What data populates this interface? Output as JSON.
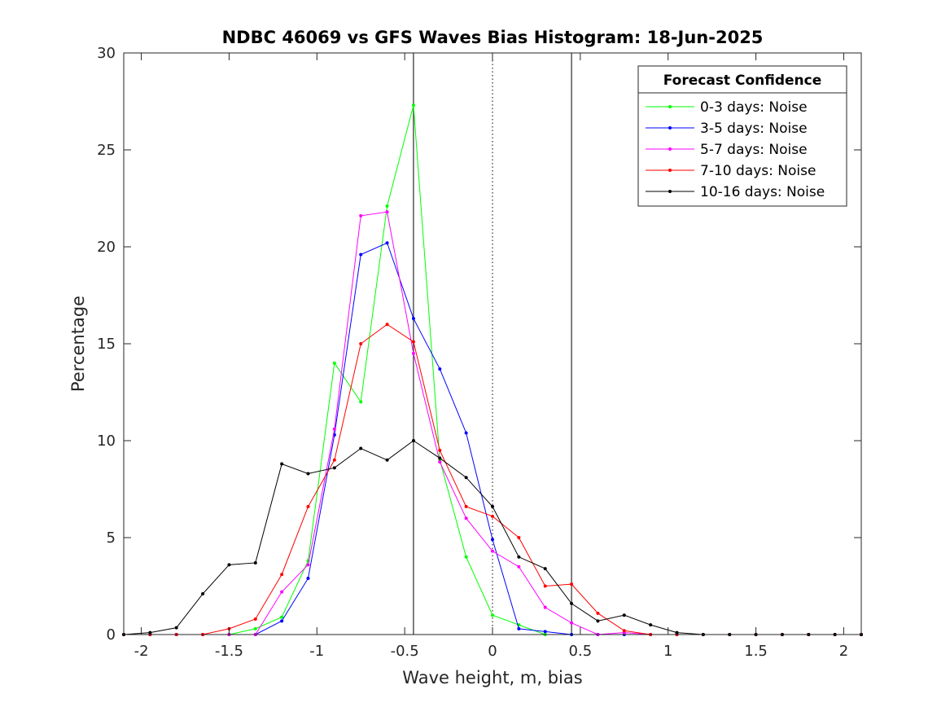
{
  "chart_data": {
    "type": "line",
    "title": "NDBC 46069 vs GFS Waves Bias Histogram: 18-Jun-2025",
    "xlabel": "Wave height, m, bias",
    "ylabel": "Percentage",
    "xlim": [
      -2.1,
      2.1
    ],
    "ylim": [
      0,
      30
    ],
    "xticks": [
      -2,
      -1.5,
      -1,
      -0.5,
      0,
      0.5,
      1,
      1.5,
      2
    ],
    "xtick_labels": [
      "-2",
      "-1.5",
      "-1",
      "-0.5",
      "0",
      "0.5",
      "1",
      "1.5",
      "2"
    ],
    "yticks": [
      0,
      5,
      10,
      15,
      20,
      25,
      30
    ],
    "ytick_labels": [
      "0",
      "5",
      "10",
      "15",
      "20",
      "25",
      "30"
    ],
    "grid": false,
    "reference_lines": [
      {
        "x": -0.45,
        "style": "solid"
      },
      {
        "x": 0,
        "style": "dotted"
      },
      {
        "x": 0.45,
        "style": "solid"
      }
    ],
    "legend": {
      "title": "Forecast Confidence",
      "position": "top-right"
    },
    "x": [
      -2.1,
      -1.95,
      -1.8,
      -1.65,
      -1.5,
      -1.35,
      -1.2,
      -1.05,
      -0.9,
      -0.75,
      -0.6,
      -0.45,
      -0.3,
      -0.15,
      0,
      0.15,
      0.3,
      0.45,
      0.6,
      0.75,
      0.9,
      1.05,
      1.2,
      1.35,
      1.5,
      1.65,
      1.8,
      1.95,
      2.1
    ],
    "series": [
      {
        "name": "0-3 days: Noise",
        "color": "#00ff00",
        "values": [
          0,
          0,
          0,
          0,
          0,
          0.3,
          0.9,
          3.8,
          14.0,
          12.0,
          22.1,
          27.3,
          9.0,
          4.0,
          1.0,
          0.5,
          0,
          0,
          0,
          0,
          0,
          0,
          0,
          0,
          0,
          0,
          0,
          0,
          0
        ]
      },
      {
        "name": "3-5 days: Noise",
        "color": "#0000ff",
        "values": [
          0,
          0,
          0,
          0,
          0,
          0,
          0.7,
          2.9,
          10.3,
          19.6,
          20.2,
          16.3,
          13.7,
          10.4,
          4.9,
          0.3,
          0.15,
          0,
          0,
          0,
          0,
          0,
          0,
          0,
          0,
          0,
          0,
          0,
          0
        ]
      },
      {
        "name": "5-7 days: Noise",
        "color": "#ff00ff",
        "values": [
          0,
          0,
          0,
          0,
          0,
          0,
          2.2,
          3.6,
          10.6,
          21.6,
          21.8,
          14.5,
          8.9,
          6.0,
          4.3,
          3.5,
          1.4,
          0.6,
          0,
          0.1,
          0,
          0,
          0,
          0,
          0,
          0,
          0,
          0,
          0
        ]
      },
      {
        "name": "7-10 days: Noise",
        "color": "#ff0000",
        "values": [
          0,
          0,
          0,
          0,
          0.3,
          0.8,
          3.1,
          6.6,
          9.0,
          15.0,
          16.0,
          15.1,
          9.5,
          6.6,
          6.1,
          5.0,
          2.5,
          2.6,
          1.1,
          0.2,
          0,
          0,
          0,
          0,
          0,
          0,
          0,
          0,
          0
        ]
      },
      {
        "name": "10-16 days: Noise",
        "color": "#000000",
        "values": [
          0,
          0.1,
          0.35,
          2.1,
          3.6,
          3.7,
          8.8,
          8.3,
          8.6,
          9.6,
          9.0,
          10.0,
          9.1,
          8.1,
          6.6,
          4.0,
          3.4,
          1.6,
          0.7,
          1.0,
          0.5,
          0.1,
          0,
          0,
          0,
          0,
          0,
          0,
          0
        ]
      }
    ]
  }
}
